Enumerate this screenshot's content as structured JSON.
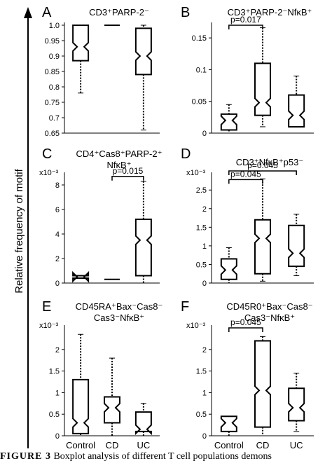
{
  "figure": {
    "y_axis_label": "Relative frequency of motif",
    "caption_prefix": "FIGURE 3",
    "caption_text": "Boxplot analysis of different T cell populations demons"
  },
  "chart_data": [
    {
      "panel": "A",
      "type": "boxplot",
      "title": "CD3⁺PARP-2⁻",
      "categories": [
        "Control",
        "CD",
        "UC"
      ],
      "ylim": [
        0.65,
        1.0
      ],
      "yticks": [
        "0.65",
        "0.7",
        "0.75",
        "0.8",
        "0.85",
        "0.9",
        "0.95",
        "1.0"
      ],
      "scale_note": "",
      "boxes": [
        {
          "whisker_low": 0.78,
          "q1": 0.885,
          "median": 0.93,
          "q3": 1.0,
          "whisker_high": 1.0
        },
        {
          "whisker_low": 1.0,
          "q1": 1.0,
          "median": 1.0,
          "q3": 1.0,
          "whisker_high": 1.0
        },
        {
          "whisker_low": 0.66,
          "q1": 0.84,
          "median": 0.9,
          "q3": 0.99,
          "whisker_high": 1.0
        }
      ],
      "significance": []
    },
    {
      "panel": "B",
      "type": "boxplot",
      "title": "CD3⁺PARP-2⁻NfκB⁺",
      "categories": [
        "Control",
        "CD",
        "UC"
      ],
      "ylim": [
        0,
        0.17
      ],
      "yticks": [
        "0",
        "0.05",
        "0.1",
        "0.15"
      ],
      "scale_note": "",
      "boxes": [
        {
          "whisker_low": 0,
          "q1": 0.005,
          "median": 0.02,
          "q3": 0.03,
          "whisker_high": 0.045
        },
        {
          "whisker_low": 0.01,
          "q1": 0.028,
          "median": 0.048,
          "q3": 0.11,
          "whisker_high": 0.166
        },
        {
          "whisker_low": 0.01,
          "q1": 0.01,
          "median": 0.028,
          "q3": 0.06,
          "whisker_high": 0.09
        }
      ],
      "significance": [
        {
          "from": 0,
          "to": 1,
          "label": "p=0.017",
          "y": 0.17
        }
      ]
    },
    {
      "panel": "C",
      "type": "boxplot",
      "title_line1": "CD4⁺Cas8⁺PARP-2⁺",
      "title_line2": "NfκB⁺",
      "categories": [
        "Control",
        "CD",
        "UC"
      ],
      "ylim": [
        0,
        0.0088
      ],
      "yticks": [
        "0",
        "2",
        "4",
        "6",
        "8"
      ],
      "scale_note": "x10⁻³",
      "boxes": [
        {
          "whisker_low": 0.0004,
          "q1": 0.0004,
          "median": 0.0005,
          "q3": 0.0006,
          "whisker_high": 0.0006
        },
        {
          "whisker_low": 0.0003,
          "q1": 0.0003,
          "median": 0.0003,
          "q3": 0.0003,
          "whisker_high": 0.0003
        },
        {
          "whisker_low": 0,
          "q1": 0.0006,
          "median": 0.0035,
          "q3": 0.0052,
          "whisker_high": 0.0083
        }
      ],
      "significance": [
        {
          "from": 1,
          "to": 2,
          "label": "p=0.015",
          "y": 0.0087
        }
      ]
    },
    {
      "panel": "D",
      "type": "boxplot",
      "title": "CD3⁺NfκB⁺p53⁻",
      "categories": [
        "Control",
        "CD",
        "UC"
      ],
      "ylim": [
        0,
        0.0029
      ],
      "yticks": [
        "0",
        "0.5",
        "1",
        "1.5",
        "2",
        "2.5"
      ],
      "scale_note": "x10⁻³",
      "boxes": [
        {
          "whisker_low": 0,
          "q1": 0.0001,
          "median": 0.00035,
          "q3": 0.00065,
          "whisker_high": 0.00095
        },
        {
          "whisker_low": 5e-05,
          "q1": 0.00025,
          "median": 0.0012,
          "q3": 0.0017,
          "whisker_high": 0.0028
        },
        {
          "whisker_low": 0.0002,
          "q1": 0.00045,
          "median": 0.0008,
          "q3": 0.00155,
          "whisker_high": 0.00185
        }
      ],
      "significance": [
        {
          "from": 0,
          "to": 2,
          "label": "p=0.045",
          "y": 0.00305
        },
        {
          "from": 0,
          "to": 1,
          "label": "p=0.045",
          "y": 0.00278
        }
      ]
    },
    {
      "panel": "E",
      "type": "boxplot",
      "title_line1": "CD45RA⁺Bax⁻Cas8⁻",
      "title_line2": "Cas3⁻NfκB⁺",
      "categories": [
        "Control",
        "CD",
        "UC"
      ],
      "ylim": [
        0,
        0.0025
      ],
      "yticks": [
        "0",
        "0.5",
        "1",
        "1.5",
        "2"
      ],
      "scale_note": "x10⁻³",
      "boxes": [
        {
          "whisker_low": 0,
          "q1": 5e-05,
          "median": 0.0003,
          "q3": 0.0013,
          "whisker_high": 0.00235
        },
        {
          "whisker_low": 0,
          "q1": 0.0003,
          "median": 0.00065,
          "q3": 0.0009,
          "whisker_high": 0.0018
        },
        {
          "whisker_low": 0,
          "q1": 0.0001,
          "median": 0.00015,
          "q3": 0.00055,
          "whisker_high": 0.00075
        }
      ],
      "significance": []
    },
    {
      "panel": "F",
      "type": "boxplot",
      "title_line1": "CD45R0⁺Bax⁻Cas8⁻",
      "title_line2": "Cas3⁻NfκB⁺",
      "categories": [
        "Control",
        "CD",
        "UC"
      ],
      "ylim": [
        0,
        0.0025
      ],
      "yticks": [
        "0",
        "0.5",
        "1",
        "1.5",
        "2"
      ],
      "scale_note": "x10⁻³",
      "boxes": [
        {
          "whisker_low": 0,
          "q1": 0.0001,
          "median": 0.0003,
          "q3": 0.00045,
          "whisker_high": 0.00045
        },
        {
          "whisker_low": 0,
          "q1": 0.0002,
          "median": 0.00105,
          "q3": 0.0022,
          "whisker_high": 0.0023
        },
        {
          "whisker_low": 0.0001,
          "q1": 0.00035,
          "median": 0.00065,
          "q3": 0.0011,
          "whisker_high": 0.00145
        }
      ],
      "significance": [
        {
          "from": 0,
          "to": 1,
          "label": "p=0.045",
          "y": 0.0025
        }
      ]
    }
  ]
}
